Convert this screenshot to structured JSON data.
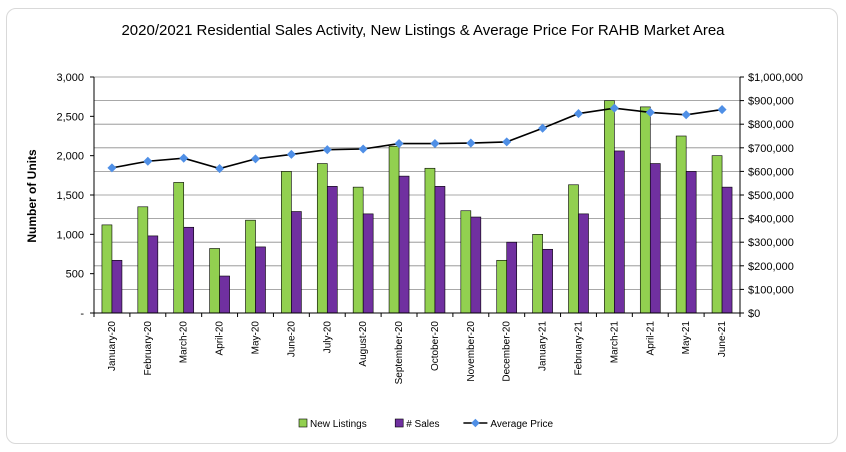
{
  "chart_data": {
    "type": "bar",
    "title": "2020/2021 Residential Sales Activity, New Listings & Average Price For RAHB Market Area",
    "ylabel": "Number of Units",
    "y2label": "",
    "ylim": [
      0,
      3000
    ],
    "y2lim": [
      0,
      1000000
    ],
    "yticks": [
      "-",
      "500",
      "1,000",
      "1,500",
      "2,000",
      "2,500",
      "3,000"
    ],
    "y2ticks": [
      "$0",
      "$100,000",
      "$200,000",
      "$300,000",
      "$400,000",
      "$500,000",
      "$600,000",
      "$700,000",
      "$800,000",
      "$900,000",
      "$1,000,000"
    ],
    "grid": true,
    "legend": "bottom",
    "categories": [
      "January-20",
      "February-20",
      "March-20",
      "April-20",
      "May-20",
      "June-20",
      "July-20",
      "August-20",
      "September-20",
      "October-20",
      "November-20",
      "December-20",
      "January-21",
      "February-21",
      "March-21",
      "April-21",
      "May-21",
      "June-21"
    ],
    "series": [
      {
        "name": "New Listings",
        "type": "bar",
        "axis": "left",
        "color": "#92d050",
        "values": [
          1120,
          1350,
          1660,
          820,
          1180,
          1800,
          1900,
          1600,
          2120,
          1840,
          1300,
          670,
          1000,
          1630,
          2700,
          2620,
          2250,
          2000
        ]
      },
      {
        "name": "# Sales",
        "type": "bar",
        "axis": "left",
        "color": "#7030a0",
        "values": [
          670,
          980,
          1090,
          470,
          840,
          1290,
          1610,
          1260,
          1740,
          1610,
          1220,
          900,
          810,
          1260,
          2060,
          1900,
          1800,
          1600
        ]
      },
      {
        "name": "Average Price",
        "type": "line",
        "axis": "right",
        "color": "#000000",
        "marker_color": "#4f8fe6",
        "values": [
          615000,
          643000,
          656000,
          612000,
          653000,
          672000,
          692000,
          695000,
          718000,
          718000,
          720000,
          725000,
          783000,
          845000,
          868000,
          850000,
          840000,
          862000
        ]
      }
    ]
  }
}
